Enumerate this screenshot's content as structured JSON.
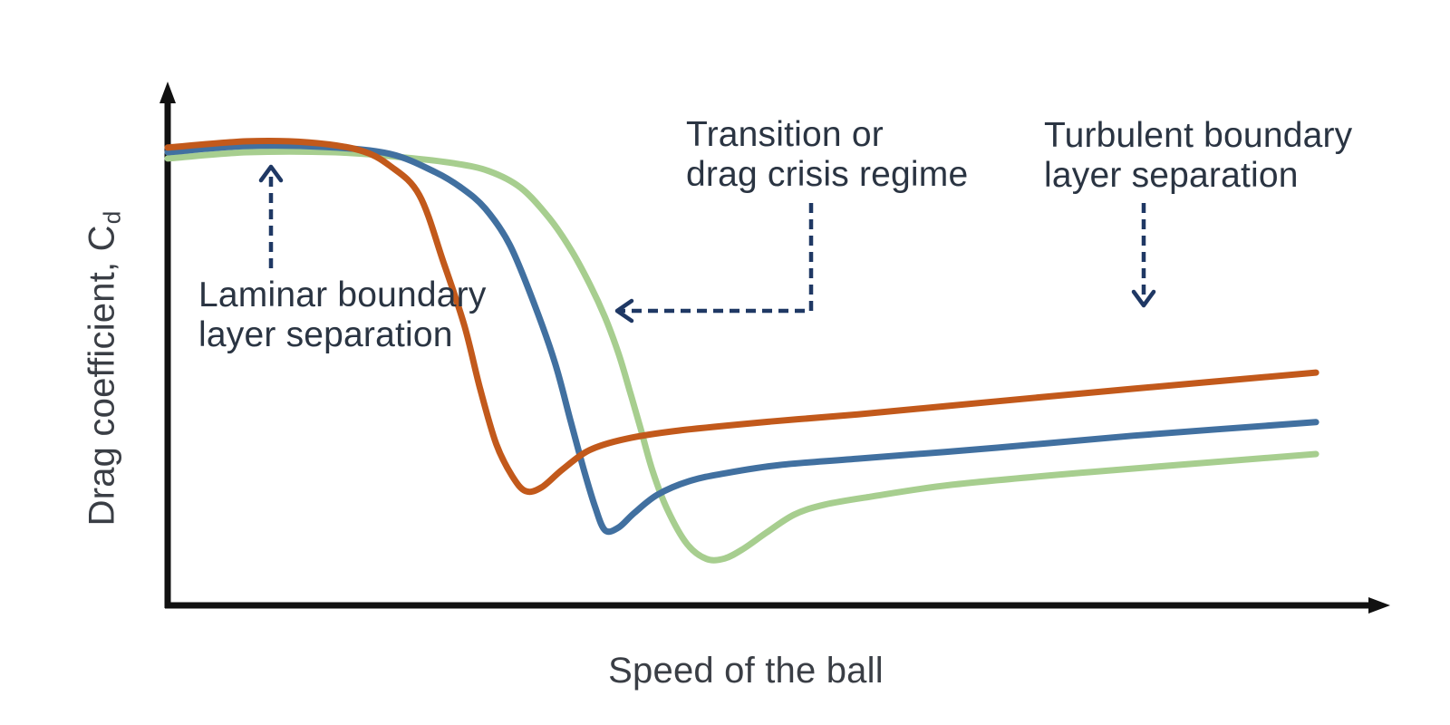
{
  "page": {
    "background": "#FFFFFF"
  },
  "colors": {
    "curve_orange": "#C2591B",
    "curve_blue": "#4170A0",
    "curve_green": "#A7CE8F",
    "arrow_navy": "#1F3864",
    "axis_black": "#111111",
    "annotation_text": "#2A3442",
    "axis_label_text": "#3A3E45",
    "background": "#FFFFFF"
  },
  "chart_data": {
    "type": "line",
    "title": "",
    "xlabel": "Speed of the ball",
    "ylabel": "Drag coefficient, C",
    "ylabel_subscript": "d",
    "x_ticks": [],
    "y_ticks": [],
    "legend": "none",
    "axes_note": "Qualitative schematic: both axes end in arrowheads, no tick marks or numeric scale shown. Coordinates below are normalized (x: 0 = origin, 1 = x-axis arrow tip; y: 0 = x-axis, 1 = y-axis arrow tip).",
    "series": [
      {
        "name": "green",
        "color": "#A7CE8F",
        "points": [
          [
            0.0,
            0.856
          ],
          [
            0.065,
            0.868
          ],
          [
            0.137,
            0.868
          ],
          [
            0.194,
            0.858
          ],
          [
            0.234,
            0.847
          ],
          [
            0.263,
            0.832
          ],
          [
            0.289,
            0.8
          ],
          [
            0.312,
            0.743
          ],
          [
            0.33,
            0.682
          ],
          [
            0.346,
            0.613
          ],
          [
            0.358,
            0.552
          ],
          [
            0.369,
            0.483
          ],
          [
            0.378,
            0.413
          ],
          [
            0.387,
            0.34
          ],
          [
            0.397,
            0.257
          ],
          [
            0.409,
            0.184
          ],
          [
            0.425,
            0.118
          ],
          [
            0.441,
            0.089
          ],
          [
            0.456,
            0.09
          ],
          [
            0.471,
            0.108
          ],
          [
            0.49,
            0.139
          ],
          [
            0.513,
            0.174
          ],
          [
            0.538,
            0.193
          ],
          [
            0.575,
            0.208
          ],
          [
            0.642,
            0.231
          ],
          [
            0.753,
            0.255
          ],
          [
            0.94,
            0.29
          ]
        ]
      },
      {
        "name": "blue",
        "color": "#4170A0",
        "points": [
          [
            0.0,
            0.868
          ],
          [
            0.065,
            0.88
          ],
          [
            0.13,
            0.878
          ],
          [
            0.182,
            0.865
          ],
          [
            0.219,
            0.83
          ],
          [
            0.241,
            0.799
          ],
          [
            0.26,
            0.76
          ],
          [
            0.28,
            0.691
          ],
          [
            0.3,
            0.578
          ],
          [
            0.317,
            0.465
          ],
          [
            0.33,
            0.352
          ],
          [
            0.341,
            0.257
          ],
          [
            0.35,
            0.188
          ],
          [
            0.358,
            0.144
          ],
          [
            0.369,
            0.149
          ],
          [
            0.382,
            0.177
          ],
          [
            0.401,
            0.212
          ],
          [
            0.427,
            0.238
          ],
          [
            0.456,
            0.253
          ],
          [
            0.501,
            0.269
          ],
          [
            0.565,
            0.281
          ],
          [
            0.679,
            0.302
          ],
          [
            0.79,
            0.325
          ],
          [
            0.94,
            0.351
          ]
        ]
      },
      {
        "name": "orange",
        "color": "#C2591B",
        "points": [
          [
            0.0,
            0.877
          ],
          [
            0.065,
            0.889
          ],
          [
            0.115,
            0.887
          ],
          [
            0.157,
            0.872
          ],
          [
            0.182,
            0.842
          ],
          [
            0.206,
            0.786
          ],
          [
            0.226,
            0.656
          ],
          [
            0.243,
            0.535
          ],
          [
            0.256,
            0.413
          ],
          [
            0.269,
            0.309
          ],
          [
            0.282,
            0.248
          ],
          [
            0.293,
            0.219
          ],
          [
            0.306,
            0.226
          ],
          [
            0.323,
            0.26
          ],
          [
            0.345,
            0.297
          ],
          [
            0.375,
            0.319
          ],
          [
            0.419,
            0.335
          ],
          [
            0.493,
            0.352
          ],
          [
            0.565,
            0.366
          ],
          [
            0.679,
            0.391
          ],
          [
            0.79,
            0.415
          ],
          [
            0.94,
            0.446
          ]
        ]
      }
    ],
    "annotations": [
      {
        "id": "laminar",
        "lines": [
          "Laminar boundary",
          "layer separation"
        ],
        "arrow": "dashed navy arrow pointing up at the high-drag plateau"
      },
      {
        "id": "transition",
        "lines": [
          "Transition or",
          "drag crisis regime"
        ],
        "arrow": "dashed navy elbow arrow pointing left at the steep drop of the green curve"
      },
      {
        "id": "turbulent",
        "lines": [
          "Turbulent boundary",
          "layer separation"
        ],
        "arrow": "dashed navy arrow pointing down at the post-crisis region"
      }
    ]
  }
}
